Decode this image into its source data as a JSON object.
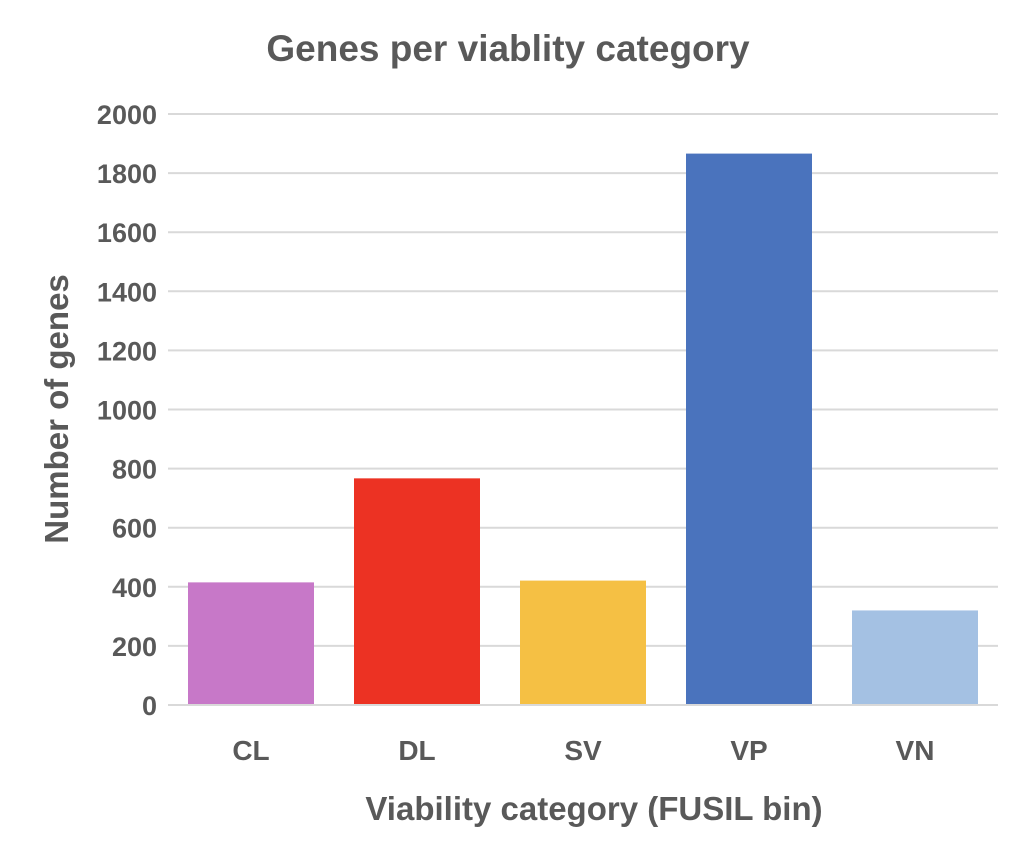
{
  "chart_data": {
    "type": "bar",
    "title": "Genes per viablity category",
    "xlabel": "Viability category (FUSIL bin)",
    "ylabel": "Number of genes",
    "categories": [
      "CL",
      "DL",
      "SV",
      "VP",
      "VN"
    ],
    "values": [
      415,
      767,
      421,
      1866,
      320
    ],
    "colors": [
      "#c778c8",
      "#ec3223",
      "#f5c044",
      "#4a73bd",
      "#a4c1e3"
    ],
    "ylim": [
      0,
      2000
    ],
    "yticks": [
      0,
      200,
      400,
      600,
      800,
      1000,
      1200,
      1400,
      1600,
      1800,
      2000
    ],
    "grid": true,
    "legend": "none"
  }
}
